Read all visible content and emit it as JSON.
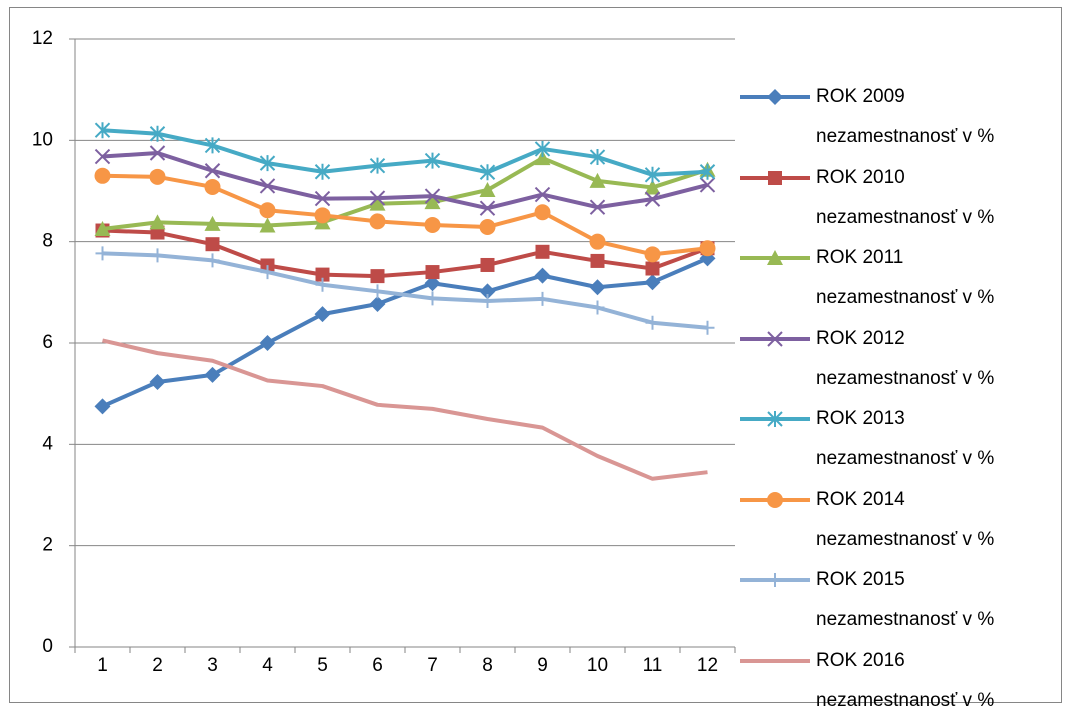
{
  "chart_data": {
    "type": "line",
    "categories": [
      "1",
      "2",
      "3",
      "4",
      "5",
      "6",
      "7",
      "8",
      "9",
      "10",
      "11",
      "12"
    ],
    "ylim": [
      0,
      12
    ],
    "yticks": [
      0,
      2,
      4,
      6,
      8,
      10,
      12
    ],
    "grid": true,
    "legend": "right",
    "series": [
      {
        "name": "ROK 2009 nezamestnanosť v %",
        "color": "#4a7ebb",
        "marker": "diamond",
        "values": [
          4.75,
          5.23,
          5.37,
          6.0,
          6.57,
          6.77,
          7.18,
          7.02,
          7.33,
          7.1,
          7.2,
          7.67
        ]
      },
      {
        "name": "ROK 2010 nezamestnanosť v %",
        "color": "#be4b48",
        "marker": "square",
        "values": [
          8.22,
          8.18,
          7.95,
          7.53,
          7.35,
          7.32,
          7.4,
          7.54,
          7.8,
          7.62,
          7.47,
          7.87
        ]
      },
      {
        "name": "ROK 2011 nezamestnanosť v %",
        "color": "#98b954",
        "marker": "triangle",
        "values": [
          8.25,
          8.38,
          8.35,
          8.32,
          8.38,
          8.75,
          8.78,
          9.02,
          9.65,
          9.2,
          9.07,
          9.42
        ]
      },
      {
        "name": "ROK 2012 nezamestnanosť v %",
        "color": "#7d60a0",
        "marker": "x",
        "values": [
          9.68,
          9.75,
          9.4,
          9.1,
          8.85,
          8.86,
          8.9,
          8.66,
          8.93,
          8.68,
          8.84,
          9.12
        ]
      },
      {
        "name": "ROK 2013 nezamestnanosť v %",
        "color": "#46aac5",
        "marker": "star",
        "values": [
          10.2,
          10.13,
          9.9,
          9.55,
          9.38,
          9.5,
          9.6,
          9.37,
          9.83,
          9.67,
          9.32,
          9.38
        ]
      },
      {
        "name": "ROK 2014 nezamestnanosť v %",
        "color": "#f79646",
        "marker": "circle",
        "values": [
          9.3,
          9.28,
          9.08,
          8.62,
          8.52,
          8.4,
          8.33,
          8.29,
          8.58,
          8.0,
          7.75,
          7.87
        ]
      },
      {
        "name": "ROK 2015 nezamestnanosť v %",
        "color": "#94b3d7",
        "marker": "plus",
        "values": [
          7.77,
          7.73,
          7.63,
          7.4,
          7.15,
          7.02,
          6.88,
          6.83,
          6.87,
          6.7,
          6.4,
          6.3
        ]
      },
      {
        "name": "ROK 2016 nezamestnanosť v %",
        "color": "#d99694",
        "marker": "none",
        "values": [
          6.05,
          5.8,
          5.65,
          5.26,
          5.15,
          4.78,
          4.7,
          4.5,
          4.33,
          3.77,
          3.32,
          3.45
        ]
      }
    ]
  }
}
